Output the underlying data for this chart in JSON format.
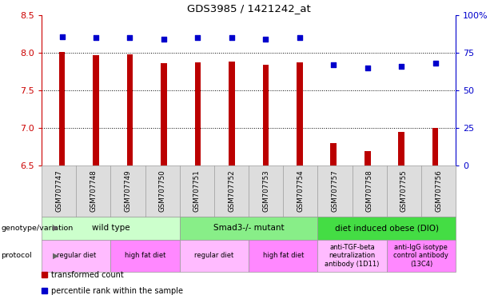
{
  "title": "GDS3985 / 1421242_at",
  "samples": [
    "GSM707747",
    "GSM707748",
    "GSM707749",
    "GSM707750",
    "GSM707751",
    "GSM707752",
    "GSM707753",
    "GSM707754",
    "GSM707757",
    "GSM707758",
    "GSM707755",
    "GSM707756"
  ],
  "transformed_count": [
    8.01,
    7.97,
    7.98,
    7.86,
    7.88,
    7.89,
    7.84,
    7.88,
    6.8,
    6.7,
    6.95,
    7.0
  ],
  "percentile_rank": [
    86,
    85,
    85,
    84,
    85,
    85,
    84,
    85,
    67,
    65,
    66,
    68
  ],
  "ylim_left": [
    6.5,
    8.5
  ],
  "ylim_right": [
    0,
    100
  ],
  "yticks_left": [
    6.5,
    7.0,
    7.5,
    8.0,
    8.5
  ],
  "yticks_right": [
    0,
    25,
    50,
    75,
    100
  ],
  "ytick_labels_right": [
    "0",
    "25",
    "50",
    "75",
    "100%"
  ],
  "bar_color": "#bb0000",
  "dot_color": "#0000cc",
  "left_axis_color": "#cc0000",
  "right_axis_color": "#0000cc",
  "dot_size": 18,
  "bar_width": 0.18,
  "genotype_groups": [
    {
      "label": "wild type",
      "start": 0,
      "end": 3,
      "color": "#ccffcc"
    },
    {
      "label": "Smad3-/- mutant",
      "start": 4,
      "end": 7,
      "color": "#88ee88"
    },
    {
      "label": "diet induced obese (DIO)",
      "start": 8,
      "end": 11,
      "color": "#44dd44"
    }
  ],
  "protocol_groups": [
    {
      "label": "regular diet",
      "start": 0,
      "end": 1,
      "color": "#ffbbff"
    },
    {
      "label": "high fat diet",
      "start": 2,
      "end": 3,
      "color": "#ff88ff"
    },
    {
      "label": "regular diet",
      "start": 4,
      "end": 5,
      "color": "#ffbbff"
    },
    {
      "label": "high fat diet",
      "start": 6,
      "end": 7,
      "color": "#ff88ff"
    },
    {
      "label": "anti-TGF-beta\nneutralization\nantibody (1D11)",
      "start": 8,
      "end": 9,
      "color": "#ffbbff"
    },
    {
      "label": "anti-IgG isotype\ncontrol antibody\n(13C4)",
      "start": 10,
      "end": 11,
      "color": "#ff88ff"
    }
  ],
  "legend_items": [
    {
      "label": "transformed count",
      "color": "#bb0000"
    },
    {
      "label": "percentile rank within the sample",
      "color": "#0000cc"
    }
  ],
  "background_color": "#ffffff",
  "sample_bg_color": "#dddddd",
  "sample_border_color": "#999999"
}
